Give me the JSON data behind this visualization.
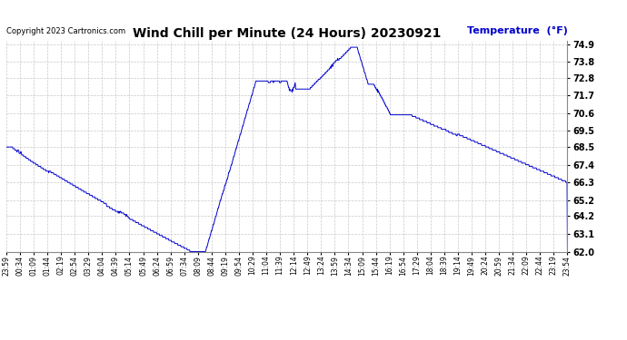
{
  "title": "Wind Chill per Minute (24 Hours) 20230921",
  "ylabel": "Temperature  (°F)",
  "copyright": "Copyright 2023 Cartronics.com",
  "line_color": "#0000cc",
  "ylabel_color": "#0000cc",
  "background_color": "#ffffff",
  "grid_color": "#aaaaaa",
  "ylim": [
    62.0,
    75.1
  ],
  "yticks": [
    62.0,
    63.1,
    64.2,
    65.2,
    66.3,
    67.4,
    68.5,
    69.5,
    70.6,
    71.7,
    72.8,
    73.8,
    74.9
  ],
  "xtick_labels": [
    "23:59",
    "00:34",
    "01:09",
    "01:44",
    "02:19",
    "02:54",
    "03:29",
    "04:04",
    "04:39",
    "05:14",
    "05:49",
    "06:24",
    "06:59",
    "07:34",
    "08:09",
    "08:44",
    "09:19",
    "09:54",
    "10:29",
    "11:04",
    "11:39",
    "12:14",
    "12:49",
    "13:24",
    "13:59",
    "14:34",
    "15:09",
    "15:44",
    "16:19",
    "16:54",
    "17:29",
    "18:04",
    "18:39",
    "19:14",
    "19:49",
    "20:24",
    "20:59",
    "21:34",
    "22:09",
    "22:44",
    "23:19",
    "23:54"
  ]
}
